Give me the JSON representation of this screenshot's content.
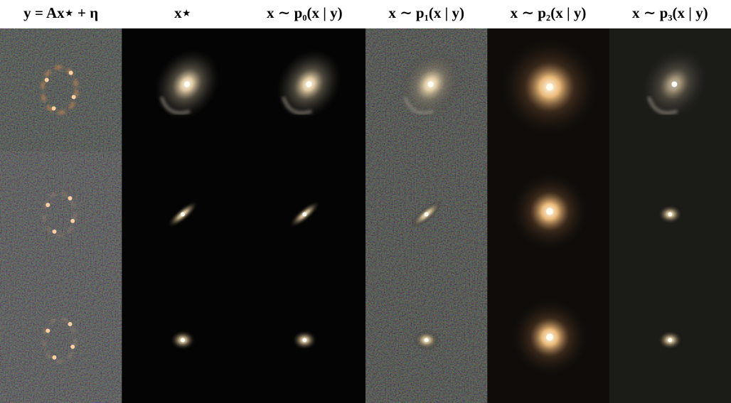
{
  "columns": [
    {
      "label": "y = Ax⋆ + η"
    },
    {
      "label": "x⋆"
    },
    {
      "label": "x ∼ p₀(x | y)"
    },
    {
      "label": "x ∼ p₁(x | y)"
    },
    {
      "label": "x ∼ p₂(x | y)"
    },
    {
      "label": "x ∼ p₃(x | y)"
    }
  ]
}
